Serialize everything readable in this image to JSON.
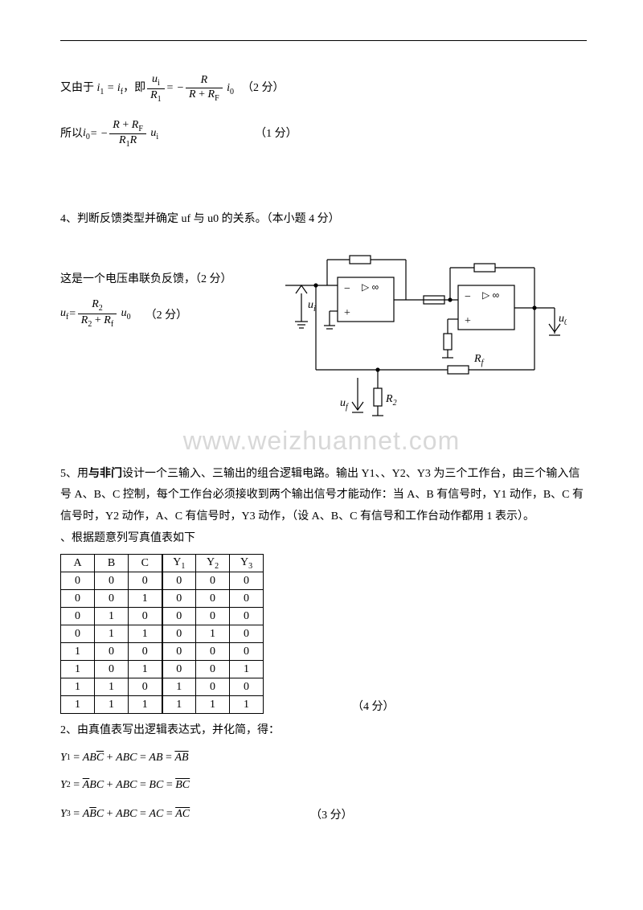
{
  "line1_prefix": "又由于",
  "eq1_lhs": "i",
  "eq1_lhs_sub": "1",
  "eq1_mid": "i",
  "eq1_mid_sub": "f",
  "line1_comma": "，即",
  "frac1_num": "u",
  "frac1_num_sub": "i",
  "frac1_den": "R",
  "frac1_den_sub": "1",
  "eq1b_sign": " = − ",
  "frac2_num": "R",
  "frac2_den_a": "R",
  "frac2_den_plus": " + ",
  "frac2_den_b": "R",
  "frac2_den_b_sub": "F",
  "eq1b_tail": "i",
  "eq1b_tail_sub": "0",
  "score2": "（2 分）",
  "line2_prefix": "所以 ",
  "eq2_lhs": "i",
  "eq2_lhs_sub": "0",
  "eq2_sign": " = − ",
  "frac3_num_a": "R",
  "frac3_num_plus": " + ",
  "frac3_num_b": "R",
  "frac3_num_b_sub": "F",
  "frac3_den_a": "R",
  "frac3_den_a_sub": "1",
  "frac3_den_b": "R",
  "eq2_tail": "u",
  "eq2_tail_sub": "i",
  "score1": "（1 分）",
  "prob4_title": "4、判断反馈类型并确定 uf 与 u0 的关系。（本小题 4 分）",
  "prob4_text1": "这是一个电压串联负反馈，（2 分）",
  "eq4_lhs": "u",
  "eq4_lhs_sub": "f",
  "eq4_eq": " = ",
  "frac4_num": "R",
  "frac4_num_sub": "2",
  "frac4_den_a": "R",
  "frac4_den_a_sub": "2",
  "frac4_den_plus": " + ",
  "frac4_den_b": "R",
  "frac4_den_b_sub": "f",
  "eq4_tail": "u",
  "eq4_tail_sub": "0",
  "eq4_score": "（2 分）",
  "circuit": {
    "ui": "u",
    "ui_sub": "i",
    "uo": "u",
    "uo_sub": "0",
    "uf": "u",
    "uf_sub": "f",
    "rf": "R",
    "rf_sub": "f",
    "r2": "R",
    "r2_sub": "2",
    "amp_sym": "▷ ∞",
    "plus": "+",
    "minus": "−"
  },
  "watermark": "www.weizhuannet.com",
  "prob5_label": "5、用",
  "prob5_bold": "与非门",
  "prob5_rest1": "设计一个三输入、三输出的组合逻辑电路。输出 Y1、、Y2、Y3 为三个工作台，由三个输入信",
  "prob5_line2": "号 A、B、C 控制，每个工作台必须接收到两个输出信号才能动作：当 A、B 有信号时，Y1 动作，B、C 有",
  "prob5_line3": "信号时，Y2 动作，A、C 有信号时，Y3 动作，（设 A、B、C 有信号和工作台动作都用 1 表示）。",
  "truth_intro": "、根据题意列写真值表如下",
  "truth_headers": [
    "A",
    "B",
    "C",
    "Y",
    "Y",
    "Y"
  ],
  "truth_headers_sub": [
    "",
    "",
    "",
    "1",
    "2",
    "3"
  ],
  "truth_rows": [
    [
      "0",
      "0",
      "0",
      "0",
      "0",
      "0"
    ],
    [
      "0",
      "0",
      "1",
      "0",
      "0",
      "0"
    ],
    [
      "0",
      "1",
      "0",
      "0",
      "0",
      "0"
    ],
    [
      "0",
      "1",
      "1",
      "0",
      "1",
      "0"
    ],
    [
      "1",
      "0",
      "0",
      "0",
      "0",
      "0"
    ],
    [
      "1",
      "0",
      "1",
      "0",
      "0",
      "1"
    ],
    [
      "1",
      "1",
      "0",
      "1",
      "0",
      "0"
    ],
    [
      "1",
      "1",
      "1",
      "1",
      "1",
      "1"
    ]
  ],
  "truth_score": "（4 分）",
  "simplify_intro": "2、由真值表写出逻辑表达式，并化简，得：",
  "y1_lhs": "Y",
  "y1_sub": "1",
  "y1_t1_a": "AB",
  "y1_t1_b": "C",
  "y1_t2": "ABC",
  "y1_t3": "AB",
  "y1_t4": "AB",
  "y2_lhs": "Y",
  "y2_sub": "2",
  "y2_t1_a": "A",
  "y2_t1_b": "BC",
  "y2_t2": "ABC",
  "y2_t3": "BC",
  "y2_t4": "BC",
  "y3_lhs": "Y",
  "y3_sub": "3",
  "y3_t1_a": "A",
  "y3_t1_b": "B",
  "y3_t1_c": "C",
  "y3_t2": "ABC",
  "y3_t3": "AC",
  "y3_t4": "AC",
  "y_score": "（3 分）"
}
